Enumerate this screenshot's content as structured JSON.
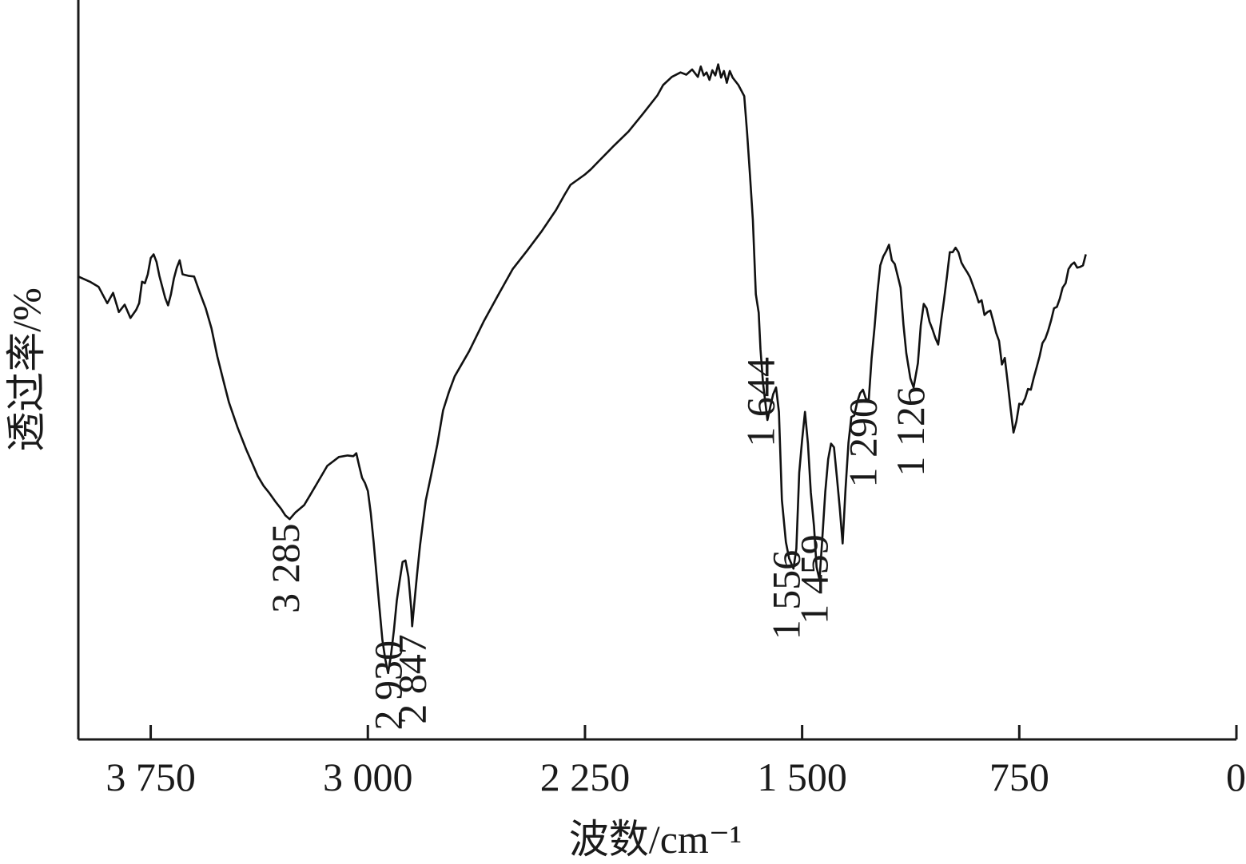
{
  "chart_data": {
    "type": "line",
    "xlabel": "波数/cm⁻¹",
    "ylabel": "透过率/%",
    "xlim": [
      4000,
      0
    ],
    "x_reversed": true,
    "y_ticks_shown": false,
    "grid": false,
    "x_ticks": [
      {
        "value": 3750,
        "label": "3 750"
      },
      {
        "value": 3000,
        "label": "3 000"
      },
      {
        "value": 2250,
        "label": "2 250"
      },
      {
        "value": 1500,
        "label": "1 500"
      },
      {
        "value": 750,
        "label": "750"
      },
      {
        "value": 0,
        "label": "0"
      }
    ],
    "series": [
      {
        "color": "#111111",
        "x": [
          4000,
          3960,
          3930,
          3900,
          3880,
          3860,
          3840,
          3820,
          3800,
          3790,
          3780,
          3770,
          3760,
          3750,
          3740,
          3730,
          3720,
          3700,
          3690,
          3680,
          3670,
          3660,
          3650,
          3640,
          3620,
          3600,
          3580,
          3560,
          3540,
          3520,
          3500,
          3480,
          3450,
          3420,
          3400,
          3380,
          3360,
          3340,
          3320,
          3300,
          3285,
          3270,
          3250,
          3220,
          3200,
          3170,
          3140,
          3100,
          3070,
          3050,
          3040,
          3030,
          3020,
          3010,
          3000,
          2990,
          2980,
          2970,
          2960,
          2950,
          2940,
          2930,
          2920,
          2910,
          2900,
          2890,
          2880,
          2870,
          2860,
          2850,
          2847,
          2840,
          2830,
          2820,
          2810,
          2800,
          2780,
          2760,
          2740,
          2720,
          2700,
          2650,
          2600,
          2550,
          2500,
          2450,
          2400,
          2350,
          2320,
          2300,
          2250,
          2230,
          2200,
          2150,
          2100,
          2050,
          2000,
          1980,
          1950,
          1920,
          1900,
          1880,
          1860,
          1850,
          1840,
          1830,
          1820,
          1810,
          1800,
          1790,
          1780,
          1770,
          1760,
          1750,
          1740,
          1720,
          1700,
          1690,
          1680,
          1670,
          1660,
          1650,
          1644,
          1635,
          1620,
          1610,
          1600,
          1590,
          1580,
          1570,
          1556,
          1545,
          1530,
          1520,
          1510,
          1500,
          1490,
          1480,
          1470,
          1459,
          1450,
          1440,
          1430,
          1420,
          1410,
          1400,
          1390,
          1380,
          1370,
          1360,
          1350,
          1340,
          1330,
          1320,
          1310,
          1300,
          1290,
          1280,
          1270,
          1260,
          1250,
          1240,
          1230,
          1220,
          1210,
          1200,
          1190,
          1180,
          1170,
          1160,
          1150,
          1140,
          1126,
          1115,
          1100,
          1090,
          1080,
          1070,
          1060,
          1050,
          1040,
          1030,
          1020,
          1010,
          1000,
          990,
          980,
          970,
          960,
          950,
          940,
          930,
          920,
          910,
          900,
          890,
          880,
          870,
          860,
          850,
          840,
          830,
          820,
          810,
          800,
          790,
          780,
          770,
          760,
          750,
          740,
          730,
          720,
          710,
          700,
          690,
          680,
          670,
          660,
          650,
          640,
          630,
          620,
          610,
          600,
          590,
          580,
          570,
          560,
          550,
          540,
          530,
          520
        ],
        "y": [
          62.6,
          61.9,
          61.2,
          59.0,
          60.4,
          57.8,
          58.8,
          57.0,
          58.1,
          59.0,
          61.9,
          61.7,
          62.9,
          65.1,
          65.6,
          64.6,
          62.7,
          59.7,
          58.7,
          60.2,
          62.3,
          63.8,
          64.8,
          62.9,
          62.7,
          62.6,
          60.4,
          58.3,
          55.6,
          51.8,
          48.7,
          45.6,
          42.2,
          39.2,
          37.4,
          35.6,
          34.3,
          33.3,
          32.2,
          31.2,
          30.3,
          29.8,
          30.7,
          31.7,
          33.0,
          35.0,
          37.0,
          38.2,
          38.4,
          38.3,
          38.7,
          37.0,
          35.4,
          34.7,
          33.6,
          30.6,
          26.7,
          22.3,
          17.9,
          13.5,
          10.9,
          9.0,
          11.4,
          14.8,
          18.8,
          21.5,
          24.0,
          24.2,
          22.0,
          17.6,
          15.3,
          18.2,
          22.3,
          26.2,
          29.3,
          32.3,
          36.0,
          39.9,
          44.5,
          47.0,
          49.1,
          52.5,
          56.5,
          60.1,
          63.6,
          66.1,
          68.7,
          71.6,
          73.7,
          75.0,
          76.4,
          77.1,
          78.3,
          80.3,
          82.2,
          84.6,
          87.1,
          88.5,
          89.6,
          90.2,
          89.9,
          90.6,
          89.6,
          91.0,
          89.8,
          90.2,
          89.2,
          90.5,
          89.8,
          91.3,
          89.5,
          90.4,
          88.8,
          90.4,
          89.5,
          88.5,
          87.0,
          82.0,
          76.3,
          70.2,
          60.2,
          57.7,
          52.8,
          48.2,
          43.2,
          45.0,
          46.7,
          47.6,
          44.3,
          32.4,
          26.7,
          24.5,
          23.1,
          25.8,
          36.1,
          40.5,
          44.3,
          40.0,
          33.4,
          28.8,
          23.3,
          21.6,
          27.4,
          33.5,
          37.9,
          40.0,
          39.5,
          35.5,
          31.3,
          26.5,
          34.0,
          40.1,
          43.6,
          43.8,
          45.6,
          46.8,
          47.3,
          46.1,
          45.8,
          51.6,
          55.7,
          60.4,
          64.1,
          65.3,
          66.0,
          66.9,
          64.8,
          64.3,
          62.7,
          61.1,
          56.1,
          52.2,
          48.8,
          47.6,
          50.9,
          56.0,
          58.9,
          58.3,
          56.5,
          55.5,
          54.3,
          53.4,
          56.6,
          59.4,
          62.6,
          65.9,
          65.9,
          66.5,
          65.9,
          64.5,
          63.8,
          63.2,
          62.5,
          61.4,
          60.3,
          59.1,
          59.4,
          57.4,
          57.8,
          58.0,
          56.6,
          55.0,
          53.9,
          50.7,
          51.6,
          48.3,
          44.8,
          41.5,
          43.0,
          45.4,
          45.3,
          46.1,
          47.4,
          47.3,
          48.9,
          50.3,
          51.8,
          53.6,
          54.2,
          55.3,
          56.7,
          58.3,
          58.5,
          59.6,
          61.1,
          61.7,
          63.6,
          64.2,
          64.5,
          63.8,
          63.9,
          64.1,
          65.6
        ]
      }
    ],
    "annotations": [
      {
        "x": 3285,
        "label": "3 285"
      },
      {
        "x": 2930,
        "label": "2 930"
      },
      {
        "x": 2847,
        "label": "2 847"
      },
      {
        "x": 1644,
        "label": "1 644"
      },
      {
        "x": 1556,
        "label": "1 556"
      },
      {
        "x": 1459,
        "label": "1 459"
      },
      {
        "x": 1290,
        "label": "1 290"
      },
      {
        "x": 1126,
        "label": "1 126"
      }
    ]
  }
}
